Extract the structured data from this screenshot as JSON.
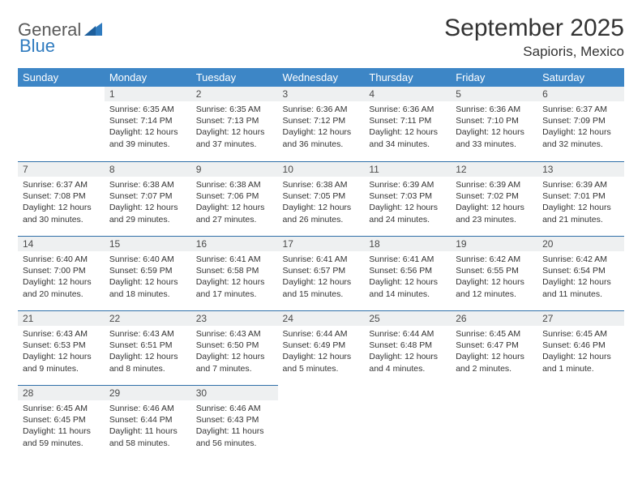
{
  "brand": {
    "text1": "General",
    "text2": "Blue"
  },
  "title": "September 2025",
  "location": "Sapioris, Mexico",
  "colors": {
    "header_bg": "#3d86c6",
    "header_text": "#ffffff",
    "daynum_bg": "#eef0f1",
    "row_divider": "#2f6fa8",
    "brand_gray": "#5a5a5a",
    "brand_blue": "#2f7bbf",
    "text": "#333333",
    "background": "#ffffff"
  },
  "weekdays": [
    "Sunday",
    "Monday",
    "Tuesday",
    "Wednesday",
    "Thursday",
    "Friday",
    "Saturday"
  ],
  "weeks": [
    [
      null,
      {
        "n": "1",
        "sunrise": "Sunrise: 6:35 AM",
        "sunset": "Sunset: 7:14 PM",
        "daylight": "Daylight: 12 hours and 39 minutes."
      },
      {
        "n": "2",
        "sunrise": "Sunrise: 6:35 AM",
        "sunset": "Sunset: 7:13 PM",
        "daylight": "Daylight: 12 hours and 37 minutes."
      },
      {
        "n": "3",
        "sunrise": "Sunrise: 6:36 AM",
        "sunset": "Sunset: 7:12 PM",
        "daylight": "Daylight: 12 hours and 36 minutes."
      },
      {
        "n": "4",
        "sunrise": "Sunrise: 6:36 AM",
        "sunset": "Sunset: 7:11 PM",
        "daylight": "Daylight: 12 hours and 34 minutes."
      },
      {
        "n": "5",
        "sunrise": "Sunrise: 6:36 AM",
        "sunset": "Sunset: 7:10 PM",
        "daylight": "Daylight: 12 hours and 33 minutes."
      },
      {
        "n": "6",
        "sunrise": "Sunrise: 6:37 AM",
        "sunset": "Sunset: 7:09 PM",
        "daylight": "Daylight: 12 hours and 32 minutes."
      }
    ],
    [
      {
        "n": "7",
        "sunrise": "Sunrise: 6:37 AM",
        "sunset": "Sunset: 7:08 PM",
        "daylight": "Daylight: 12 hours and 30 minutes."
      },
      {
        "n": "8",
        "sunrise": "Sunrise: 6:38 AM",
        "sunset": "Sunset: 7:07 PM",
        "daylight": "Daylight: 12 hours and 29 minutes."
      },
      {
        "n": "9",
        "sunrise": "Sunrise: 6:38 AM",
        "sunset": "Sunset: 7:06 PM",
        "daylight": "Daylight: 12 hours and 27 minutes."
      },
      {
        "n": "10",
        "sunrise": "Sunrise: 6:38 AM",
        "sunset": "Sunset: 7:05 PM",
        "daylight": "Daylight: 12 hours and 26 minutes."
      },
      {
        "n": "11",
        "sunrise": "Sunrise: 6:39 AM",
        "sunset": "Sunset: 7:03 PM",
        "daylight": "Daylight: 12 hours and 24 minutes."
      },
      {
        "n": "12",
        "sunrise": "Sunrise: 6:39 AM",
        "sunset": "Sunset: 7:02 PM",
        "daylight": "Daylight: 12 hours and 23 minutes."
      },
      {
        "n": "13",
        "sunrise": "Sunrise: 6:39 AM",
        "sunset": "Sunset: 7:01 PM",
        "daylight": "Daylight: 12 hours and 21 minutes."
      }
    ],
    [
      {
        "n": "14",
        "sunrise": "Sunrise: 6:40 AM",
        "sunset": "Sunset: 7:00 PM",
        "daylight": "Daylight: 12 hours and 20 minutes."
      },
      {
        "n": "15",
        "sunrise": "Sunrise: 6:40 AM",
        "sunset": "Sunset: 6:59 PM",
        "daylight": "Daylight: 12 hours and 18 minutes."
      },
      {
        "n": "16",
        "sunrise": "Sunrise: 6:41 AM",
        "sunset": "Sunset: 6:58 PM",
        "daylight": "Daylight: 12 hours and 17 minutes."
      },
      {
        "n": "17",
        "sunrise": "Sunrise: 6:41 AM",
        "sunset": "Sunset: 6:57 PM",
        "daylight": "Daylight: 12 hours and 15 minutes."
      },
      {
        "n": "18",
        "sunrise": "Sunrise: 6:41 AM",
        "sunset": "Sunset: 6:56 PM",
        "daylight": "Daylight: 12 hours and 14 minutes."
      },
      {
        "n": "19",
        "sunrise": "Sunrise: 6:42 AM",
        "sunset": "Sunset: 6:55 PM",
        "daylight": "Daylight: 12 hours and 12 minutes."
      },
      {
        "n": "20",
        "sunrise": "Sunrise: 6:42 AM",
        "sunset": "Sunset: 6:54 PM",
        "daylight": "Daylight: 12 hours and 11 minutes."
      }
    ],
    [
      {
        "n": "21",
        "sunrise": "Sunrise: 6:43 AM",
        "sunset": "Sunset: 6:53 PM",
        "daylight": "Daylight: 12 hours and 9 minutes."
      },
      {
        "n": "22",
        "sunrise": "Sunrise: 6:43 AM",
        "sunset": "Sunset: 6:51 PM",
        "daylight": "Daylight: 12 hours and 8 minutes."
      },
      {
        "n": "23",
        "sunrise": "Sunrise: 6:43 AM",
        "sunset": "Sunset: 6:50 PM",
        "daylight": "Daylight: 12 hours and 7 minutes."
      },
      {
        "n": "24",
        "sunrise": "Sunrise: 6:44 AM",
        "sunset": "Sunset: 6:49 PM",
        "daylight": "Daylight: 12 hours and 5 minutes."
      },
      {
        "n": "25",
        "sunrise": "Sunrise: 6:44 AM",
        "sunset": "Sunset: 6:48 PM",
        "daylight": "Daylight: 12 hours and 4 minutes."
      },
      {
        "n": "26",
        "sunrise": "Sunrise: 6:45 AM",
        "sunset": "Sunset: 6:47 PM",
        "daylight": "Daylight: 12 hours and 2 minutes."
      },
      {
        "n": "27",
        "sunrise": "Sunrise: 6:45 AM",
        "sunset": "Sunset: 6:46 PM",
        "daylight": "Daylight: 12 hours and 1 minute."
      }
    ],
    [
      {
        "n": "28",
        "sunrise": "Sunrise: 6:45 AM",
        "sunset": "Sunset: 6:45 PM",
        "daylight": "Daylight: 11 hours and 59 minutes."
      },
      {
        "n": "29",
        "sunrise": "Sunrise: 6:46 AM",
        "sunset": "Sunset: 6:44 PM",
        "daylight": "Daylight: 11 hours and 58 minutes."
      },
      {
        "n": "30",
        "sunrise": "Sunrise: 6:46 AM",
        "sunset": "Sunset: 6:43 PM",
        "daylight": "Daylight: 11 hours and 56 minutes."
      },
      null,
      null,
      null,
      null
    ]
  ]
}
